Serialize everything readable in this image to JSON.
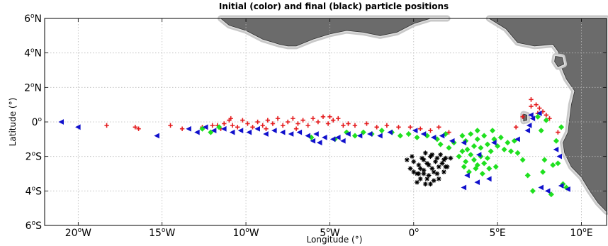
{
  "chart_data": {
    "type": "scatter",
    "title": "Initial (color) and final (black) particle positions",
    "xlabel": "Longitude (°)",
    "ylabel": "Latitude (°)",
    "xlim": [
      -22,
      11.5
    ],
    "ylim": [
      -6,
      6
    ],
    "grid": true,
    "legend": "none",
    "x_ticks": [
      {
        "value": -20,
        "label": "20",
        "sup": "o",
        "hemi": "W"
      },
      {
        "value": -15,
        "label": "15",
        "sup": "o",
        "hemi": "W"
      },
      {
        "value": -10,
        "label": "10",
        "sup": "o",
        "hemi": "W"
      },
      {
        "value": -5,
        "label": "5",
        "sup": "o",
        "hemi": "W"
      },
      {
        "value": 0,
        "label": "0",
        "sup": "o",
        "hemi": ""
      },
      {
        "value": 5,
        "label": "5",
        "sup": "o",
        "hemi": "E"
      },
      {
        "value": 10,
        "label": "10",
        "sup": "o",
        "hemi": "E"
      }
    ],
    "y_ticks": [
      {
        "value": 6,
        "label": "6",
        "sup": "o",
        "hemi": "N"
      },
      {
        "value": 4,
        "label": "4",
        "sup": "o",
        "hemi": "N"
      },
      {
        "value": 2,
        "label": "2",
        "sup": "o",
        "hemi": "N"
      },
      {
        "value": 0,
        "label": "0",
        "sup": "o",
        "hemi": ""
      },
      {
        "value": -2,
        "label": "2",
        "sup": "o",
        "hemi": "S"
      },
      {
        "value": -4,
        "label": "4",
        "sup": "o",
        "hemi": "S"
      },
      {
        "value": -6,
        "label": "6",
        "sup": "o",
        "hemi": "S"
      }
    ],
    "colors": {
      "red": "#e41a1c",
      "blue": "#1010cc",
      "green": "#1fe01f",
      "black": "#000000",
      "land": "#6b6b6b",
      "shelf": "#c8c8c8"
    },
    "land": [
      {
        "name": "west-africa-north-coast",
        "coast": [
          [
            -11.5,
            6
          ],
          [
            -11,
            5.6
          ],
          [
            -10,
            5.3
          ],
          [
            -9,
            4.8
          ],
          [
            -8,
            4.5
          ],
          [
            -7.5,
            4.4
          ],
          [
            -7,
            4.4
          ],
          [
            -6,
            4.8
          ],
          [
            -5,
            5.1
          ],
          [
            -4,
            5.3
          ],
          [
            -3,
            5.2
          ],
          [
            -2,
            5.0
          ],
          [
            -1,
            5.2
          ],
          [
            0,
            5.7
          ],
          [
            1,
            6
          ],
          [
            2,
            6
          ]
        ],
        "closes_toward": "top"
      },
      {
        "name": "east-africa-coast",
        "coast": [
          [
            4.5,
            6
          ],
          [
            5.5,
            5.4
          ],
          [
            6.2,
            4.6
          ],
          [
            7.2,
            4.4
          ],
          [
            8.3,
            4.5
          ],
          [
            8.6,
            4.1
          ],
          [
            8.8,
            3.2
          ],
          [
            9.1,
            2.5
          ],
          [
            9.6,
            1.8
          ],
          [
            9.4,
            1.0
          ],
          [
            9.3,
            0.2
          ],
          [
            9.2,
            -0.6
          ],
          [
            8.9,
            -1.2
          ],
          [
            9.0,
            -1.8
          ],
          [
            9.4,
            -2.6
          ],
          [
            10.0,
            -3.2
          ],
          [
            10.5,
            -4.0
          ],
          [
            11.0,
            -4.7
          ],
          [
            11.5,
            -5.2
          ]
        ],
        "closes_toward": "right"
      },
      {
        "name": "island-bioko",
        "coast": [
          [
            8.45,
            3.8
          ],
          [
            8.85,
            3.75
          ],
          [
            8.95,
            3.35
          ],
          [
            8.6,
            3.2
          ],
          [
            8.4,
            3.5
          ]
        ],
        "closes_toward": "self"
      },
      {
        "name": "island-sao-tome",
        "coast": [
          [
            6.55,
            0.45
          ],
          [
            6.75,
            0.4
          ],
          [
            6.75,
            0.1
          ],
          [
            6.55,
            0.05
          ]
        ],
        "closes_toward": "self"
      }
    ],
    "series": [
      {
        "color": "red",
        "marker": "plus",
        "points": [
          [
            -18.3,
            -0.2
          ],
          [
            -16.6,
            -0.3
          ],
          [
            -16.4,
            -0.4
          ],
          [
            -14.5,
            -0.2
          ],
          [
            -13.8,
            -0.4
          ],
          [
            -12.6,
            -0.3
          ],
          [
            -12.0,
            -0.2
          ],
          [
            -11.7,
            -0.2
          ],
          [
            -11.5,
            -0.4
          ],
          [
            -11.3,
            -0.1
          ],
          [
            -11.0,
            0.1
          ],
          [
            -10.8,
            -0.2
          ],
          [
            -10.5,
            -0.3
          ],
          [
            -10.2,
            0.1
          ],
          [
            -9.9,
            -0.1
          ],
          [
            -9.6,
            -0.3
          ],
          [
            -9.3,
            0.0
          ],
          [
            -9.0,
            -0.2
          ],
          [
            -8.7,
            0.1
          ],
          [
            -8.4,
            -0.1
          ],
          [
            -8.1,
            0.2
          ],
          [
            -7.8,
            -0.2
          ],
          [
            -7.5,
            0.0
          ],
          [
            -7.2,
            0.2
          ],
          [
            -6.9,
            -0.1
          ],
          [
            -6.6,
            0.1
          ],
          [
            -6.3,
            -0.2
          ],
          [
            -6.0,
            0.2
          ],
          [
            -5.7,
            0.0
          ],
          [
            -5.4,
            0.3
          ],
          [
            -5.1,
            -0.1
          ],
          [
            -4.8,
            0.1
          ],
          [
            -4.5,
            0.2
          ],
          [
            -4.2,
            -0.2
          ],
          [
            -3.9,
            -0.1
          ],
          [
            -3.5,
            -0.2
          ],
          [
            -2.8,
            -0.1
          ],
          [
            -2.2,
            -0.3
          ],
          [
            -1.6,
            -0.2
          ],
          [
            -0.9,
            -0.3
          ],
          [
            -0.2,
            -0.3
          ],
          [
            0.4,
            -0.4
          ],
          [
            1.0,
            -0.5
          ],
          [
            1.5,
            -0.3
          ],
          [
            2.1,
            -0.6
          ],
          [
            6.5,
            0.3
          ],
          [
            7.0,
            0.9
          ],
          [
            7.3,
            1.0
          ],
          [
            7.5,
            0.8
          ],
          [
            7.7,
            0.6
          ],
          [
            7.9,
            0.4
          ],
          [
            8.1,
            0.2
          ],
          [
            7.4,
            0.5
          ],
          [
            6.1,
            -0.3
          ],
          [
            7.0,
            1.3
          ],
          [
            8.6,
            -0.6
          ],
          [
            -8.8,
            -0.4
          ],
          [
            -7.0,
            -0.4
          ],
          [
            -10.9,
            0.2
          ],
          [
            -5.0,
            0.3
          ]
        ]
      },
      {
        "color": "blue",
        "marker": "triangle-left",
        "points": [
          [
            -21.0,
            0.0
          ],
          [
            -20.0,
            -0.3
          ],
          [
            -15.3,
            -0.8
          ],
          [
            -13.4,
            -0.4
          ],
          [
            -12.9,
            -0.6
          ],
          [
            -12.4,
            -0.3
          ],
          [
            -11.9,
            -0.5
          ],
          [
            -11.3,
            -0.4
          ],
          [
            -10.8,
            -0.6
          ],
          [
            -10.3,
            -0.5
          ],
          [
            -9.8,
            -0.6
          ],
          [
            -9.3,
            -0.4
          ],
          [
            -8.8,
            -0.7
          ],
          [
            -8.3,
            -0.5
          ],
          [
            -7.8,
            -0.6
          ],
          [
            -7.3,
            -0.7
          ],
          [
            -6.8,
            -0.6
          ],
          [
            -6.3,
            -0.8
          ],
          [
            -5.8,
            -0.7
          ],
          [
            -5.3,
            -0.9
          ],
          [
            -4.8,
            -1.0
          ],
          [
            -4.5,
            -0.9
          ],
          [
            -4.2,
            -1.1
          ],
          [
            -6.0,
            -1.1
          ],
          [
            -5.6,
            -1.2
          ],
          [
            -3.9,
            -0.7
          ],
          [
            -3.2,
            -0.8
          ],
          [
            -2.6,
            -0.7
          ],
          [
            -2.0,
            -0.8
          ],
          [
            -1.4,
            -0.6
          ],
          [
            0.1,
            -0.5
          ],
          [
            0.6,
            -0.7
          ],
          [
            1.2,
            -0.9
          ],
          [
            1.7,
            -0.8
          ],
          [
            2.3,
            -1.1
          ],
          [
            3.0,
            -1.2
          ],
          [
            3.9,
            -1.9
          ],
          [
            4.8,
            -1.2
          ],
          [
            6.2,
            -1.0
          ],
          [
            6.8,
            -0.5
          ],
          [
            6.9,
            -0.2
          ],
          [
            7.1,
            0.2
          ],
          [
            7.5,
            0.5
          ],
          [
            7.0,
            0.4
          ],
          [
            8.5,
            -1.6
          ],
          [
            8.7,
            -2.0
          ],
          [
            3.2,
            -3.1
          ],
          [
            3.8,
            -3.5
          ],
          [
            3.0,
            -3.8
          ],
          [
            7.6,
            -3.8
          ],
          [
            8.0,
            -4.0
          ],
          [
            8.8,
            -3.7
          ],
          [
            9.2,
            -3.9
          ],
          [
            4.5,
            -3.3
          ]
        ]
      },
      {
        "color": "green",
        "marker": "diamond",
        "points": [
          [
            -12.6,
            -0.4
          ],
          [
            -12.1,
            -0.6
          ],
          [
            -11.6,
            -0.3
          ],
          [
            -4.0,
            -0.6
          ],
          [
            -3.5,
            -0.8
          ],
          [
            -3.0,
            -0.6
          ],
          [
            -2.5,
            -0.7
          ],
          [
            -1.9,
            -0.5
          ],
          [
            -1.3,
            -0.6
          ],
          [
            -0.8,
            -0.8
          ],
          [
            -0.3,
            -0.7
          ],
          [
            0.2,
            -0.9
          ],
          [
            0.8,
            -0.8
          ],
          [
            1.4,
            -1.0
          ],
          [
            1.9,
            -0.7
          ],
          [
            2.4,
            -1.2
          ],
          [
            2.9,
            -0.8
          ],
          [
            3.1,
            -1.1
          ],
          [
            3.4,
            -0.7
          ],
          [
            3.6,
            -1.4
          ],
          [
            3.8,
            -1.0
          ],
          [
            4.0,
            -1.5
          ],
          [
            4.2,
            -0.8
          ],
          [
            4.4,
            -1.3
          ],
          [
            4.6,
            -1.7
          ],
          [
            4.8,
            -1.0
          ],
          [
            5.0,
            -1.4
          ],
          [
            5.2,
            -0.9
          ],
          [
            5.4,
            -1.6
          ],
          [
            5.6,
            -1.2
          ],
          [
            5.8,
            -1.7
          ],
          [
            6.0,
            -1.1
          ],
          [
            6.2,
            -1.8
          ],
          [
            3.2,
            -1.6
          ],
          [
            3.4,
            -1.9
          ],
          [
            3.6,
            -2.2
          ],
          [
            3.8,
            -2.5
          ],
          [
            4.0,
            -2.0
          ],
          [
            4.2,
            -2.4
          ],
          [
            4.4,
            -2.1
          ],
          [
            2.9,
            -1.7
          ],
          [
            3.1,
            -2.3
          ],
          [
            2.7,
            -2.0
          ],
          [
            3.0,
            -2.6
          ],
          [
            3.3,
            -2.9
          ],
          [
            3.7,
            -2.7
          ],
          [
            4.1,
            -3.0
          ],
          [
            4.5,
            -2.7
          ],
          [
            4.9,
            -2.6
          ],
          [
            7.4,
            0.3
          ],
          [
            7.6,
            -0.5
          ],
          [
            7.9,
            0.1
          ],
          [
            8.5,
            -1.1
          ],
          [
            8.8,
            -0.3
          ],
          [
            8.6,
            -2.4
          ],
          [
            8.3,
            -2.5
          ],
          [
            7.8,
            -2.2
          ],
          [
            7.7,
            -2.9
          ],
          [
            6.8,
            -3.1
          ],
          [
            6.5,
            -2.2
          ],
          [
            7.1,
            -4.0
          ],
          [
            8.2,
            -4.2
          ],
          [
            8.9,
            -3.6
          ],
          [
            9.1,
            -3.8
          ],
          [
            4.7,
            -0.5
          ],
          [
            3.8,
            -0.5
          ],
          [
            2.1,
            -1.5
          ],
          [
            1.6,
            -1.3
          ],
          [
            -6.1,
            -0.9
          ],
          [
            -4.7,
            -1.0
          ]
        ]
      },
      {
        "color": "black",
        "marker": "asterisk",
        "points": [
          [
            -0.4,
            -2.2
          ],
          [
            -0.2,
            -2.7
          ],
          [
            0.0,
            -2.3
          ],
          [
            0.2,
            -3.0
          ],
          [
            0.3,
            -2.5
          ],
          [
            0.4,
            -3.3
          ],
          [
            0.5,
            -2.1
          ],
          [
            0.6,
            -2.8
          ],
          [
            0.7,
            -3.6
          ],
          [
            0.8,
            -2.4
          ],
          [
            0.9,
            -3.1
          ],
          [
            1.0,
            -2.0
          ],
          [
            1.1,
            -2.7
          ],
          [
            1.2,
            -3.4
          ],
          [
            1.3,
            -2.3
          ],
          [
            1.4,
            -3.0
          ],
          [
            1.5,
            -2.6
          ],
          [
            1.6,
            -1.9
          ],
          [
            1.7,
            -2.4
          ],
          [
            1.8,
            -2.9
          ],
          [
            1.9,
            -2.1
          ],
          [
            2.0,
            -2.6
          ],
          [
            0.6,
            -2.2
          ],
          [
            0.9,
            -2.5
          ],
          [
            1.2,
            -2.9
          ],
          [
            0.4,
            -2.7
          ],
          [
            1.5,
            -3.3
          ],
          [
            0.8,
            -3.3
          ],
          [
            1.8,
            -2.2
          ],
          [
            1.1,
            -1.9
          ],
          [
            0.3,
            -3.0
          ],
          [
            2.2,
            -2.1
          ],
          [
            -0.1,
            -2.0
          ],
          [
            0.6,
            -3.0
          ],
          [
            1.4,
            -2.1
          ],
          [
            1.0,
            -3.6
          ],
          [
            0.2,
            -3.5
          ],
          [
            1.9,
            -2.6
          ],
          [
            0.0,
            -2.9
          ],
          [
            0.7,
            -1.8
          ]
        ]
      }
    ]
  }
}
